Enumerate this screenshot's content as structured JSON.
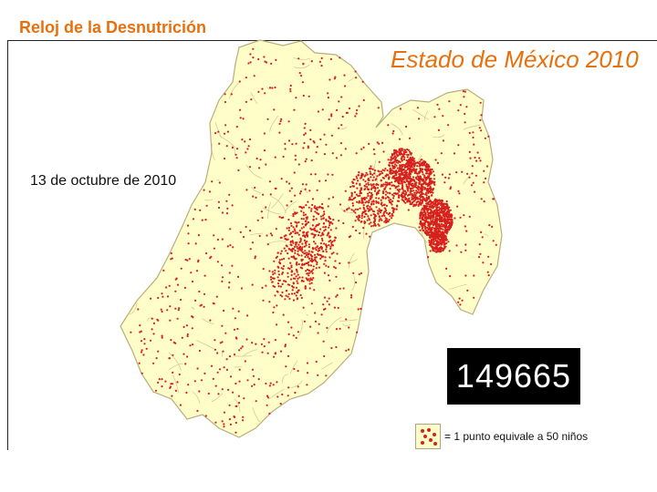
{
  "header": {
    "title": "Reloj de la Desnutrición"
  },
  "map": {
    "title": "Estado de México 2010",
    "date": "13 de octubre de 2010",
    "counter": "149665",
    "legend_text": "= 1 punto equivale a 50 niños",
    "colors": {
      "land": "#fffec8",
      "borders": "#c8bf90",
      "dots": "#d62020",
      "title": "#e8700c"
    }
  }
}
